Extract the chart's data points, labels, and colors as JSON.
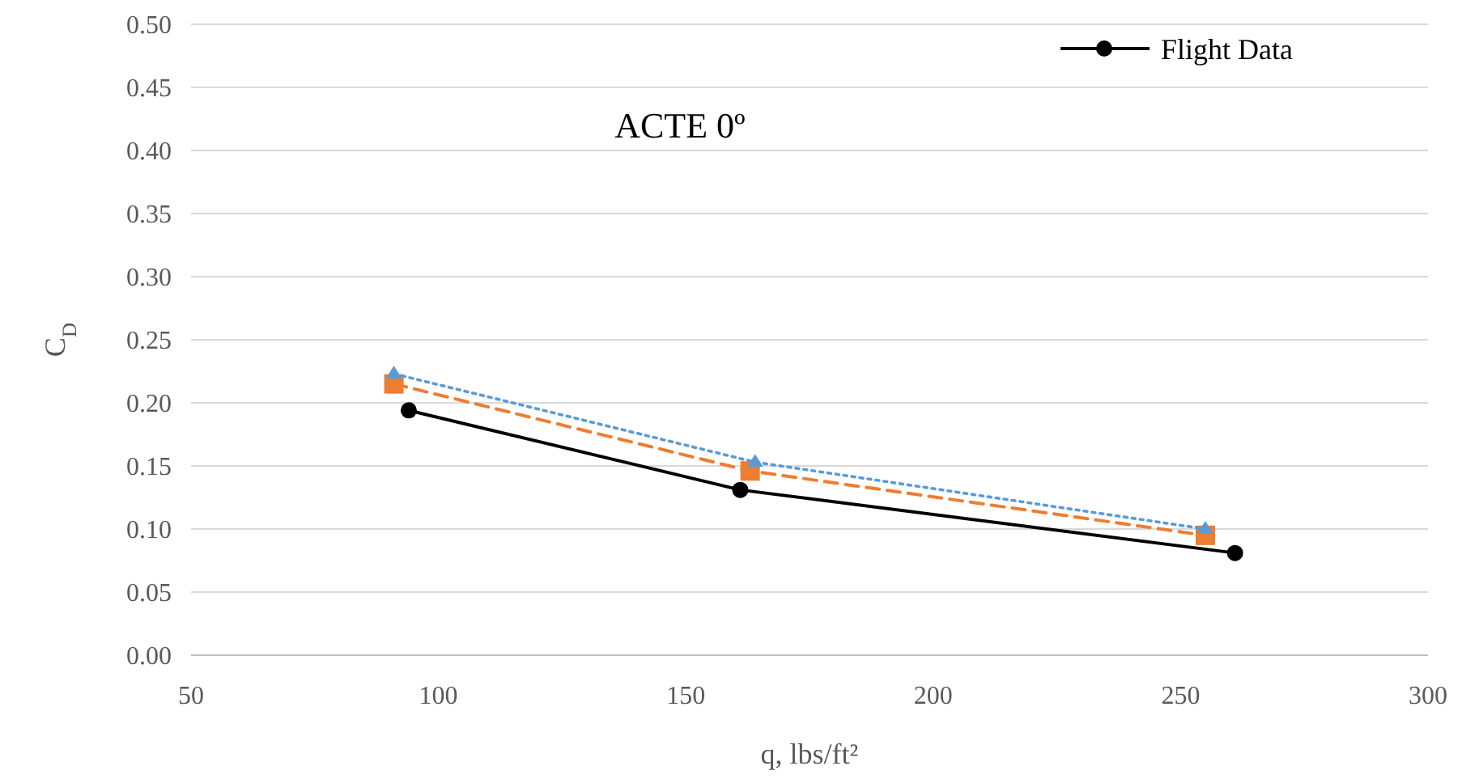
{
  "chart_data": {
    "type": "line",
    "xlabel": "q, lbs/ft²",
    "ylabel": "C$_{D}$",
    "annotations": [
      "ACTE 0º"
    ],
    "xlim": [
      50,
      300
    ],
    "xticks": [
      50,
      100,
      150,
      200,
      250,
      300
    ],
    "ylim": [
      0,
      0.5
    ],
    "yticks": [
      {
        "value": 0,
        "label": "0.00"
      },
      {
        "value": 0.05,
        "label": "0.05"
      },
      {
        "value": 0.1,
        "label": "0.10"
      },
      {
        "value": 0.15,
        "label": "0.15"
      },
      {
        "value": 0.2,
        "label": "0.20"
      },
      {
        "value": 0.25,
        "label": "0.25"
      },
      {
        "value": 0.3,
        "label": "0.30"
      },
      {
        "value": 0.35,
        "label": "0.35"
      },
      {
        "value": 0.4,
        "label": "0.40"
      },
      {
        "value": 0.45,
        "label": "0.45"
      },
      {
        "value": 0.5,
        "label": "0.50"
      }
    ],
    "grid": "y",
    "legend": "top right",
    "series": [
      {
        "name": "Flight Data",
        "color": "#000000",
        "x": [
          94,
          161,
          261
        ],
        "values": [
          0.194,
          0.131,
          0.081
        ],
        "marker": "circle",
        "line_style": "solid"
      },
      {
        "color": "#ed7d31",
        "x": [
          91,
          163,
          255
        ],
        "values": [
          0.215,
          0.146,
          0.095
        ],
        "marker": "square",
        "line_style": "dashed"
      },
      {
        "color": "#5b9bd5",
        "x": [
          91,
          164,
          255
        ],
        "values": [
          0.223,
          0.153,
          0.1
        ],
        "marker": "triangle",
        "line_style": "dotted"
      }
    ]
  }
}
